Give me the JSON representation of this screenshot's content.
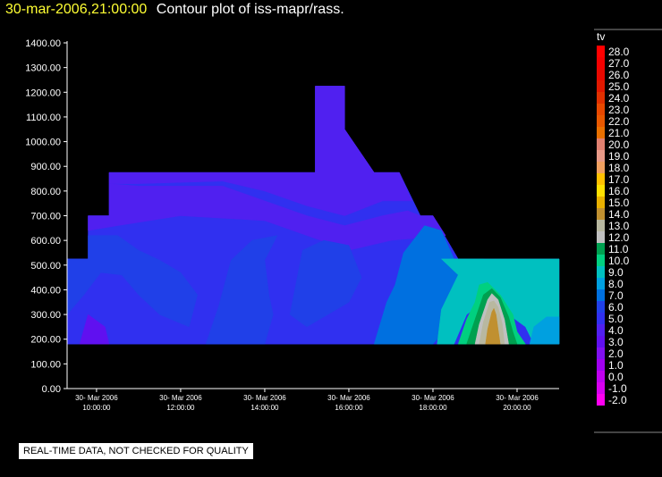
{
  "header": {
    "timestamp": "30-mar-2006,21:00:00",
    "title": "Contour plot of iss-mapr/rass."
  },
  "notice": "REAL-TIME DATA, NOT CHECKED FOR QUALITY",
  "chart_data": {
    "type": "heatmap",
    "title": "Contour plot of iss-mapr/rass.",
    "variable": "tv",
    "ylim": [
      0,
      1400
    ],
    "y_ticks": [
      "0.00",
      "100.00",
      "200.00",
      "300.00",
      "400.00",
      "500.00",
      "600.00",
      "700.00",
      "800.00",
      "900.00",
      "1000.00",
      "1100.00",
      "1200.00",
      "1300.00",
      "1400.00"
    ],
    "x_range_hours": [
      9.3,
      21.0
    ],
    "x_ticks": [
      {
        "date": "30- Mar 2006",
        "time": "10:00:00",
        "hour": 10
      },
      {
        "date": "30- Mar 2006",
        "time": "12:00:00",
        "hour": 12
      },
      {
        "date": "30- Mar 2006",
        "time": "14:00:00",
        "hour": 14
      },
      {
        "date": "30- Mar 2006",
        "time": "16:00:00",
        "hour": 16
      },
      {
        "date": "30- Mar 2006",
        "time": "18:00:00",
        "hour": 18
      },
      {
        "date": "30- Mar 2006",
        "time": "20:00:00",
        "hour": 20
      }
    ],
    "colorbar": {
      "labels": [
        "28.0",
        "27.0",
        "26.0",
        "25.0",
        "24.0",
        "23.0",
        "22.0",
        "21.0",
        "20.0",
        "19.0",
        "18.0",
        "17.0",
        "16.0",
        "15.0",
        "14.0",
        "13.0",
        "12.0",
        "11.0",
        "10.0",
        "9.0",
        "8.0",
        "7.0",
        "6.0",
        "5.0",
        "4.0",
        "3.0",
        "2.0",
        "1.0",
        "0.0",
        "-1.0",
        "-2.0"
      ],
      "colors": [
        "#ff0000",
        "#f40000",
        "#e80800",
        "#e01800",
        "#e03000",
        "#e84800",
        "#e85800",
        "#e87000",
        "#e08070",
        "#e89a88",
        "#f0a060",
        "#ffc000",
        "#ffe000",
        "#e8b000",
        "#c09030",
        "#b8b8a0",
        "#c0c0c0",
        "#00a050",
        "#00d080",
        "#00c0c0",
        "#00a0e0",
        "#0070e0",
        "#2040e8",
        "#3030f0",
        "#5020f0",
        "#6010f0",
        "#8010f0",
        "#a000f0",
        "#c000f0",
        "#d800f0",
        "#ff00f0"
      ]
    },
    "region_outline": [
      [
        9.3,
        180
      ],
      [
        9.3,
        525
      ],
      [
        9.8,
        525
      ],
      [
        9.8,
        700
      ],
      [
        10.3,
        700
      ],
      [
        10.3,
        875
      ],
      [
        15.2,
        875
      ],
      [
        15.2,
        1225
      ],
      [
        15.9,
        1225
      ],
      [
        15.9,
        1050
      ],
      [
        16.6,
        875
      ],
      [
        17.2,
        875
      ],
      [
        17.7,
        700
      ],
      [
        18.0,
        700
      ],
      [
        18.6,
        525
      ],
      [
        21.0,
        525
      ],
      [
        21.0,
        180
      ]
    ],
    "value_regions": [
      {
        "value": 5.0,
        "points": [
          [
            9.3,
            180
          ],
          [
            9.3,
            525
          ],
          [
            9.8,
            525
          ],
          [
            9.8,
            700
          ],
          [
            10.3,
            700
          ],
          [
            10.3,
            875
          ],
          [
            15.2,
            875
          ],
          [
            15.2,
            1225
          ],
          [
            15.9,
            1225
          ],
          [
            15.9,
            1050
          ],
          [
            16.6,
            875
          ],
          [
            17.2,
            875
          ],
          [
            17.7,
            700
          ],
          [
            18.0,
            700
          ],
          [
            18.6,
            525
          ],
          [
            21.0,
            525
          ],
          [
            21.0,
            180
          ]
        ]
      },
      {
        "value": 3.5,
        "points": [
          [
            10.3,
            875
          ],
          [
            15.2,
            875
          ],
          [
            15.2,
            1225
          ],
          [
            15.9,
            1225
          ],
          [
            15.9,
            1050
          ],
          [
            16.6,
            875
          ],
          [
            17.2,
            875
          ],
          [
            17.5,
            760
          ],
          [
            16.8,
            760
          ],
          [
            15.9,
            700
          ],
          [
            15.0,
            740
          ],
          [
            14.0,
            800
          ],
          [
            13.0,
            840
          ],
          [
            11.0,
            830
          ],
          [
            10.3,
            830
          ]
        ]
      },
      {
        "value": 4.0,
        "points": [
          [
            9.8,
            700
          ],
          [
            10.3,
            700
          ],
          [
            10.3,
            830
          ],
          [
            11.0,
            820
          ],
          [
            13.0,
            820
          ],
          [
            14.0,
            760
          ],
          [
            15.0,
            700
          ],
          [
            15.9,
            660
          ],
          [
            16.8,
            700
          ],
          [
            17.4,
            720
          ],
          [
            17.7,
            700
          ],
          [
            18.0,
            700
          ],
          [
            18.3,
            620
          ],
          [
            17.0,
            600
          ],
          [
            16.0,
            560
          ],
          [
            15.0,
            620
          ],
          [
            14.0,
            680
          ],
          [
            12.0,
            700
          ],
          [
            10.5,
            660
          ],
          [
            9.8,
            640
          ]
        ]
      },
      {
        "value": 6.0,
        "points": [
          [
            9.3,
            300
          ],
          [
            9.3,
            525
          ],
          [
            9.8,
            525
          ],
          [
            9.8,
            620
          ],
          [
            10.5,
            620
          ],
          [
            11.0,
            560
          ],
          [
            11.5,
            520
          ],
          [
            12.0,
            470
          ],
          [
            12.4,
            380
          ],
          [
            12.2,
            250
          ],
          [
            11.5,
            300
          ],
          [
            11.0,
            380
          ],
          [
            10.6,
            460
          ],
          [
            10.1,
            470
          ],
          [
            9.7,
            380
          ]
        ]
      },
      {
        "value": 6.0,
        "points": [
          [
            12.6,
            180
          ],
          [
            12.9,
            330
          ],
          [
            13.2,
            520
          ],
          [
            13.7,
            600
          ],
          [
            14.3,
            620
          ],
          [
            14.0,
            520
          ],
          [
            14.1,
            380
          ],
          [
            14.2,
            300
          ],
          [
            14.0,
            180
          ]
        ]
      },
      {
        "value": 6.0,
        "points": [
          [
            14.6,
            300
          ],
          [
            14.9,
            560
          ],
          [
            15.4,
            600
          ],
          [
            16.0,
            580
          ],
          [
            16.3,
            450
          ],
          [
            16.0,
            350
          ],
          [
            15.5,
            300
          ],
          [
            15.0,
            250
          ]
        ]
      },
      {
        "value": 3.0,
        "points": [
          [
            9.6,
            180
          ],
          [
            9.8,
            300
          ],
          [
            10.2,
            250
          ],
          [
            10.3,
            180
          ]
        ]
      },
      {
        "value": 7.0,
        "points": [
          [
            16.6,
            180
          ],
          [
            16.9,
            350
          ],
          [
            17.1,
            420
          ],
          [
            17.3,
            550
          ],
          [
            17.8,
            660
          ],
          [
            18.2,
            640
          ],
          [
            18.5,
            525
          ],
          [
            19.2,
            525
          ],
          [
            18.9,
            480
          ],
          [
            18.5,
            420
          ],
          [
            18.3,
            300
          ],
          [
            18.1,
            200
          ],
          [
            18.0,
            180
          ]
        ]
      },
      {
        "value": 9.0,
        "points": [
          [
            18.1,
            180
          ],
          [
            18.2,
            320
          ],
          [
            18.6,
            460
          ],
          [
            18.2,
            525
          ],
          [
            21.0,
            525
          ],
          [
            21.0,
            180
          ],
          [
            20.4,
            180
          ],
          [
            20.2,
            250
          ],
          [
            19.8,
            300
          ],
          [
            19.2,
            350
          ],
          [
            18.8,
            300
          ],
          [
            18.6,
            220
          ],
          [
            18.5,
            180
          ]
        ]
      },
      {
        "value": 10.0,
        "points": [
          [
            18.6,
            180
          ],
          [
            18.8,
            280
          ],
          [
            19.0,
            350
          ],
          [
            19.1,
            420
          ],
          [
            19.3,
            430
          ],
          [
            19.6,
            380
          ],
          [
            19.9,
            300
          ],
          [
            20.0,
            230
          ],
          [
            20.2,
            180
          ]
        ]
      },
      {
        "value": 11.0,
        "points": [
          [
            18.8,
            180
          ],
          [
            19.0,
            280
          ],
          [
            19.2,
            380
          ],
          [
            19.4,
            405
          ],
          [
            19.6,
            370
          ],
          [
            19.8,
            290
          ],
          [
            19.9,
            230
          ],
          [
            20.0,
            180
          ]
        ]
      },
      {
        "value": 12.0,
        "points": [
          [
            19.0,
            180
          ],
          [
            19.1,
            260
          ],
          [
            19.3,
            360
          ],
          [
            19.4,
            385
          ],
          [
            19.55,
            360
          ],
          [
            19.7,
            280
          ],
          [
            19.8,
            180
          ]
        ]
      },
      {
        "value": 13.0,
        "points": [
          [
            19.1,
            180
          ],
          [
            19.2,
            270
          ],
          [
            19.35,
            350
          ],
          [
            19.45,
            355
          ],
          [
            19.55,
            330
          ],
          [
            19.65,
            260
          ],
          [
            19.7,
            180
          ]
        ]
      },
      {
        "value": 14.0,
        "points": [
          [
            19.25,
            180
          ],
          [
            19.3,
            240
          ],
          [
            19.4,
            310
          ],
          [
            19.45,
            325
          ],
          [
            19.5,
            300
          ],
          [
            19.55,
            240
          ],
          [
            19.6,
            180
          ]
        ]
      },
      {
        "value": 8.0,
        "points": [
          [
            20.3,
            180
          ],
          [
            20.4,
            250
          ],
          [
            20.7,
            290
          ],
          [
            21.0,
            290
          ],
          [
            21.0,
            180
          ]
        ]
      }
    ]
  }
}
